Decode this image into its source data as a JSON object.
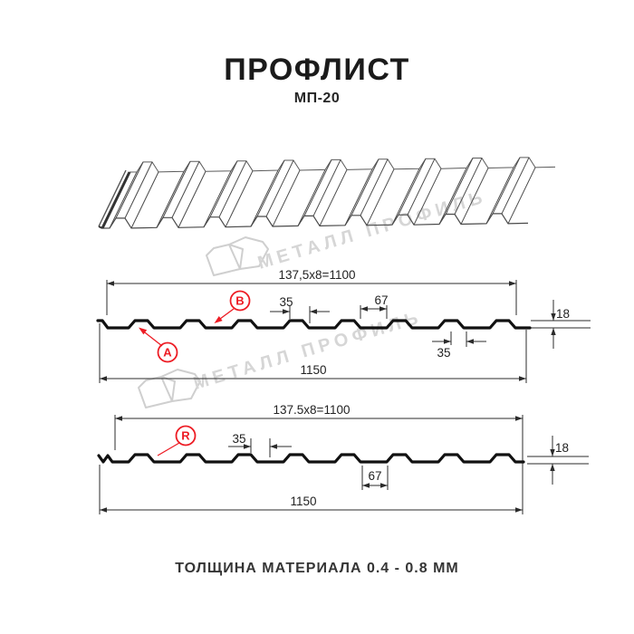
{
  "header": {
    "title": "ПРОФЛИСТ",
    "subtitle": "МП-20"
  },
  "watermark": {
    "text": "МЕТАЛЛ ПРОФИЛЬ",
    "logo": "metall-profil-logo"
  },
  "profile1": {
    "length_dim": "137,5x8=1100",
    "width_dim": "1150",
    "rib_top_dim": "35",
    "pan_dim": "67",
    "height_dim": "18",
    "rib_bottom_dim": "35",
    "label_a": "A",
    "label_b": "B"
  },
  "profile2": {
    "length_dim": "137.5x8=1100",
    "width_dim": "1150",
    "rib_top_dim": "35",
    "pan_dim": "67",
    "height_dim": "18",
    "label_r": "R"
  },
  "footer": {
    "caption": "ТОЛЩИНА МАТЕРИАЛА 0.4 - 0.8 ММ"
  },
  "colors": {
    "accent_red": "#ed1c24",
    "line": "#1a1a1a",
    "watermark": "#d6d6d6"
  }
}
